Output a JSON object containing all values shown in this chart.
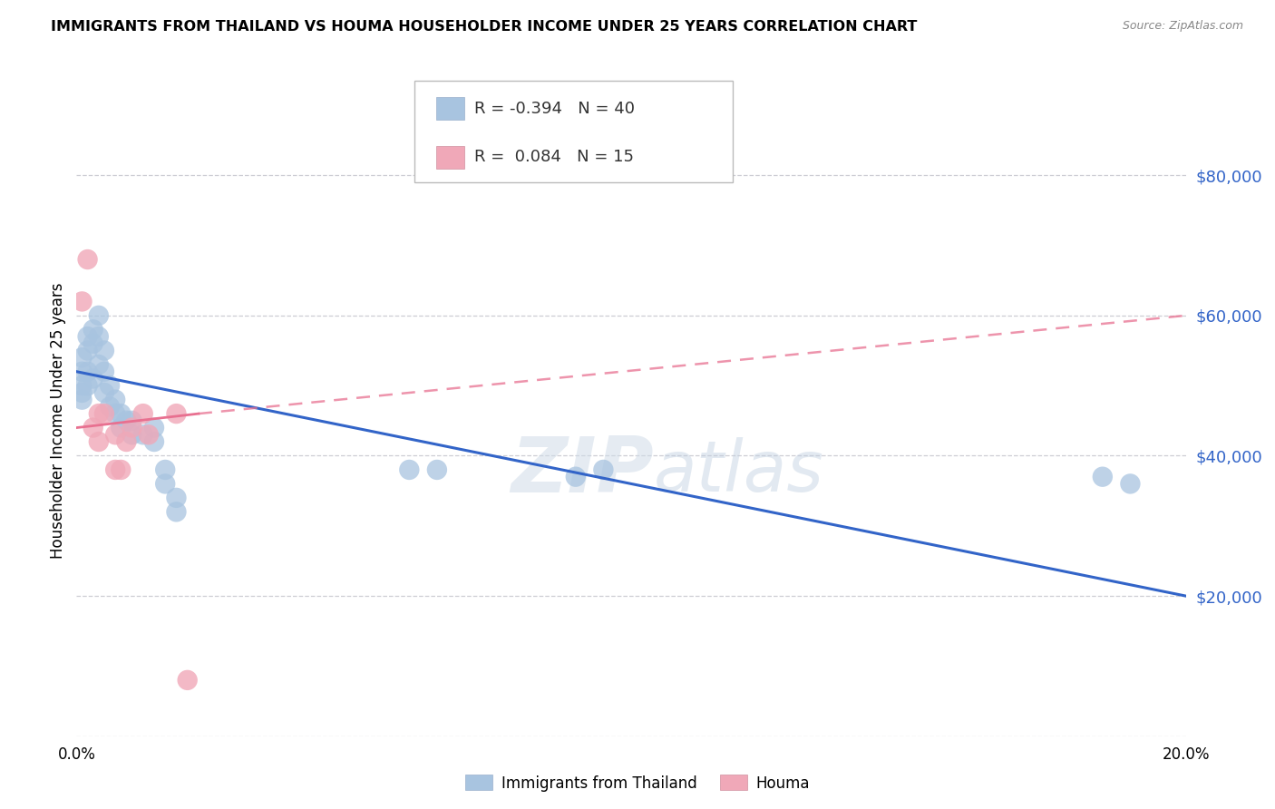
{
  "title": "IMMIGRANTS FROM THAILAND VS HOUMA HOUSEHOLDER INCOME UNDER 25 YEARS CORRELATION CHART",
  "source": "Source: ZipAtlas.com",
  "ylabel": "Householder Income Under 25 years",
  "watermark": "ZIPatlas",
  "xmin": 0.0,
  "xmax": 0.2,
  "ymin": 0,
  "ymax": 90000,
  "yticks": [
    20000,
    40000,
    60000,
    80000
  ],
  "ytick_labels": [
    "$20,000",
    "$40,000",
    "$60,000",
    "$80,000"
  ],
  "xticks": [
    0.0,
    0.04,
    0.08,
    0.12,
    0.16,
    0.2
  ],
  "blue_R": -0.394,
  "blue_N": 40,
  "pink_R": 0.084,
  "pink_N": 15,
  "legend1_label": "Immigrants from Thailand",
  "legend2_label": "Houma",
  "blue_color": "#a8c4e0",
  "pink_color": "#f0a8b8",
  "blue_line_color": "#3264c8",
  "pink_line_color": "#e87090",
  "background_color": "#ffffff",
  "grid_color": "#c8c8d0",
  "blue_scatter_x": [
    0.001,
    0.001,
    0.001,
    0.001,
    0.001,
    0.002,
    0.002,
    0.002,
    0.002,
    0.003,
    0.003,
    0.003,
    0.004,
    0.004,
    0.004,
    0.005,
    0.005,
    0.005,
    0.006,
    0.006,
    0.007,
    0.007,
    0.008,
    0.008,
    0.009,
    0.01,
    0.01,
    0.012,
    0.014,
    0.014,
    0.016,
    0.016,
    0.018,
    0.018,
    0.06,
    0.065,
    0.09,
    0.095,
    0.185,
    0.19
  ],
  "blue_scatter_y": [
    50000,
    52000,
    54000,
    48000,
    49000,
    55000,
    57000,
    50000,
    52000,
    58000,
    56000,
    51000,
    60000,
    57000,
    53000,
    55000,
    52000,
    49000,
    50000,
    47000,
    48000,
    46000,
    44000,
    46000,
    45000,
    43000,
    45000,
    43000,
    42000,
    44000,
    38000,
    36000,
    34000,
    32000,
    38000,
    38000,
    37000,
    38000,
    37000,
    36000
  ],
  "pink_scatter_x": [
    0.001,
    0.002,
    0.003,
    0.004,
    0.004,
    0.005,
    0.007,
    0.007,
    0.008,
    0.009,
    0.01,
    0.012,
    0.013,
    0.018,
    0.02
  ],
  "pink_scatter_y": [
    62000,
    68000,
    44000,
    46000,
    42000,
    46000,
    43000,
    38000,
    38000,
    42000,
    44000,
    46000,
    43000,
    46000,
    8000
  ],
  "blue_line_x0": 0.0,
  "blue_line_y0": 52000,
  "blue_line_x1": 0.2,
  "blue_line_y1": 20000,
  "pink_line_solid_x0": 0.0,
  "pink_line_solid_y0": 44000,
  "pink_line_solid_x1": 0.022,
  "pink_line_solid_y1": 46000,
  "pink_line_dash_x0": 0.022,
  "pink_line_dash_y0": 46000,
  "pink_line_dash_x1": 0.2,
  "pink_line_dash_y1": 60000
}
